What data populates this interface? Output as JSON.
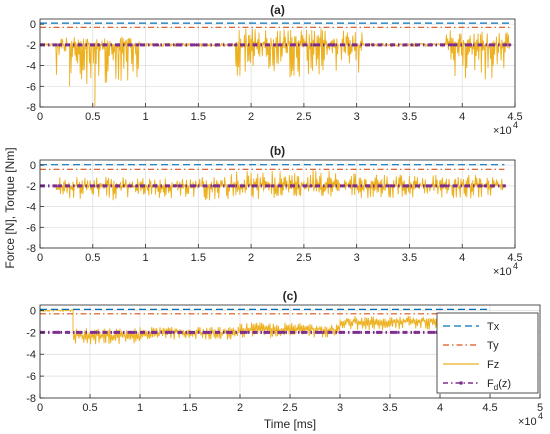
{
  "figure": {
    "ylabel": "Force [N], Torque [Nm]",
    "xlabel": "Time [ms]",
    "x_multiplier": "×10",
    "x_multiplier_exp": "4"
  },
  "colors": {
    "Tx": "#0072BD",
    "Ty": "#D95319",
    "Fz": "#EDB120",
    "Fd": "#7E2F8E",
    "axis": "#262626",
    "grid": "#dcdcdc"
  },
  "chart_data": [
    {
      "type": "line",
      "title": "(a)",
      "xlim": [
        0,
        4.5
      ],
      "ylim": [
        -8,
        0.5
      ],
      "xticks": [
        0,
        0.5,
        1,
        1.5,
        2,
        2.5,
        3,
        3.5,
        4,
        4.5
      ],
      "xticklabels": [
        "0",
        "0.5",
        "1",
        "1.5",
        "2",
        "2.5",
        "3",
        "3.5",
        "4",
        "4.5"
      ],
      "yticks": [
        -8,
        -6,
        -4,
        -2,
        0
      ],
      "yticklabels": [
        "-8",
        "-6",
        "-4",
        "-2",
        "0"
      ],
      "grid": true,
      "series": [
        {
          "name": "Tx",
          "style": "dashed",
          "x": [
            0,
            4.45
          ],
          "y": [
            0.1,
            0.1
          ]
        },
        {
          "name": "Ty",
          "style": "dashdot",
          "x": [
            0,
            4.45
          ],
          "y": [
            -0.3,
            -0.3
          ]
        },
        {
          "name": "Fz",
          "style": "solid",
          "x_range": [
            0,
            4.45
          ],
          "baseline": -2.0,
          "bursts": [
            {
              "x": [
                0.15,
                0.95
              ],
              "min": -5.8,
              "max": -1.2
            },
            {
              "x": [
                1.85,
                3.05
              ],
              "min": -5.2,
              "max": -0.3
            },
            {
              "x": [
                3.85,
                4.45
              ],
              "min": -5.6,
              "max": -0.5
            }
          ],
          "spikes": [
            {
              "x": 0.52,
              "y": -7.9
            },
            {
              "x": 0.28,
              "y": -6.0
            }
          ]
        },
        {
          "name": "F_d(z)",
          "style": "dashdot-marker",
          "x": [
            0,
            4.45
          ],
          "y": [
            -2.0,
            -2.0
          ]
        }
      ]
    },
    {
      "type": "line",
      "title": "(b)",
      "xlim": [
        0,
        4.5
      ],
      "ylim": [
        -8,
        0.5
      ],
      "xticks": [
        0,
        0.5,
        1,
        1.5,
        2,
        2.5,
        3,
        3.5,
        4,
        4.5
      ],
      "xticklabels": [
        "0",
        "0.5",
        "1",
        "1.5",
        "2",
        "2.5",
        "3",
        "3.5",
        "4",
        "4.5"
      ],
      "yticks": [
        -8,
        -6,
        -4,
        -2,
        0
      ],
      "yticklabels": [
        "-8",
        "-6",
        "-4",
        "-2",
        "0"
      ],
      "grid": true,
      "series": [
        {
          "name": "Tx",
          "style": "dashed",
          "x": [
            0,
            4.4
          ],
          "y": [
            0.05,
            0.05
          ]
        },
        {
          "name": "Ty",
          "style": "dashdot",
          "x": [
            0,
            4.4
          ],
          "y": [
            -0.4,
            -0.4
          ]
        },
        {
          "name": "Fz",
          "style": "solid",
          "x_range": [
            0.15,
            4.4
          ],
          "baseline": -2.0,
          "bursts": [
            {
              "x": [
                0.15,
                1.8
              ],
              "min": -3.4,
              "max": -1.1
            },
            {
              "x": [
                1.8,
                3.0
              ],
              "min": -3.3,
              "max": -0.4
            },
            {
              "x": [
                3.0,
                4.4
              ],
              "min": -3.2,
              "max": -0.9
            }
          ],
          "spikes": []
        },
        {
          "name": "F_d(z)",
          "style": "dashdot-marker",
          "x": [
            0,
            4.4
          ],
          "y": [
            -2.0,
            -2.0
          ]
        }
      ]
    },
    {
      "type": "line",
      "title": "(c)",
      "xlim": [
        0,
        5
      ],
      "ylim": [
        -8,
        0.5
      ],
      "xticks": [
        0,
        0.5,
        1,
        1.5,
        2,
        2.5,
        3,
        3.5,
        4,
        4.5,
        5
      ],
      "xticklabels": [
        "0",
        "0.5",
        "1",
        "1.5",
        "2",
        "2.5",
        "3",
        "3.5",
        "4",
        "4.5",
        "5"
      ],
      "yticks": [
        -8,
        -6,
        -4,
        -2,
        0
      ],
      "yticklabels": [
        "-8",
        "-6",
        "-4",
        "-2",
        "0"
      ],
      "grid": true,
      "legend": {
        "entries": [
          "Tx",
          "Ty",
          "Fz",
          "F_d(z)"
        ],
        "location": "right"
      },
      "series": [
        {
          "name": "Tx",
          "style": "dashed",
          "x": [
            0,
            4.5
          ],
          "y": [
            0.1,
            0.1
          ]
        },
        {
          "name": "Ty",
          "style": "dashdot",
          "x": [
            0,
            4.5
          ],
          "y": [
            -0.3,
            -0.3
          ]
        },
        {
          "name": "Fz",
          "style": "solid",
          "x_range": [
            0,
            4.5
          ],
          "baseline": -2.0,
          "segments": [
            {
              "x": [
                0,
                0.33
              ],
              "y": 0.0
            },
            {
              "x": [
                0.33,
                1.0
              ],
              "center": -2.3,
              "min": -3.1,
              "max": -1.6
            },
            {
              "x": [
                1.0,
                2.0
              ],
              "center": -2.0,
              "min": -2.7,
              "max": -1.5
            },
            {
              "x": [
                2.0,
                3.0
              ],
              "center": -1.7,
              "min": -2.5,
              "max": -1.1
            },
            {
              "x": [
                3.0,
                4.5
              ],
              "center": -1.0,
              "min": -1.8,
              "max": -0.5
            }
          ]
        },
        {
          "name": "F_d(z)",
          "style": "dashdot-marker",
          "x": [
            0,
            4.5
          ],
          "y": [
            -2.0,
            -2.0
          ]
        }
      ]
    }
  ]
}
